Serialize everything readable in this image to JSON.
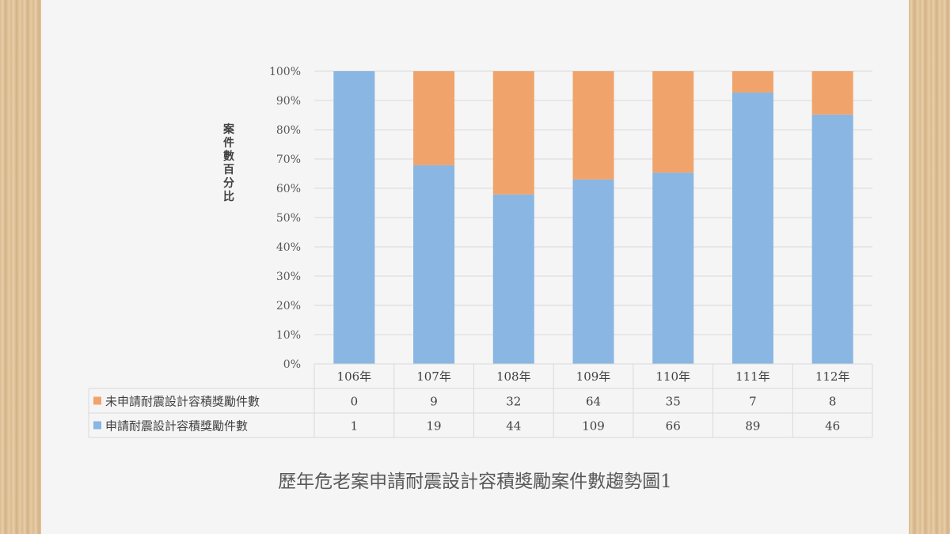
{
  "chart_data": {
    "type": "bar",
    "stacked": "percent",
    "title": "歷年危老案申請耐震設計容積獎勵案件數趨勢圖1",
    "ylabel": "案件數百分比",
    "ylim": [
      0,
      100
    ],
    "yticks": [
      "0%",
      "10%",
      "20%",
      "30%",
      "40%",
      "50%",
      "60%",
      "70%",
      "80%",
      "90%",
      "100%"
    ],
    "grid": true,
    "legend": "data-table",
    "categories": [
      "106年",
      "107年",
      "108年",
      "109年",
      "110年",
      "111年",
      "112年"
    ],
    "series": [
      {
        "name": "未申請耐震設計容積獎勵件數",
        "color": "#f0a46c",
        "values": [
          0,
          9,
          32,
          64,
          35,
          7,
          8
        ]
      },
      {
        "name": "申請耐震設計容積獎勵件數",
        "color": "#89b6e2",
        "values": [
          1,
          19,
          44,
          109,
          66,
          89,
          46
        ]
      }
    ]
  }
}
